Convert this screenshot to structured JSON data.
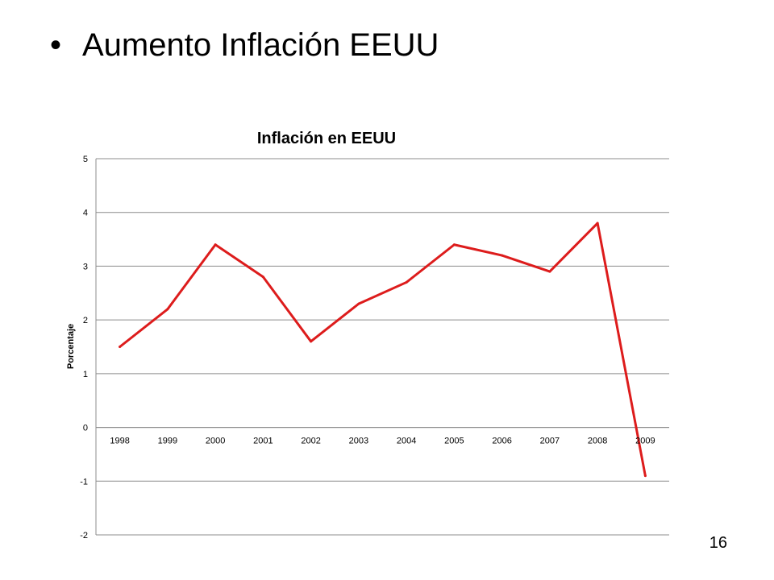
{
  "slide": {
    "bullet": "•",
    "title": "Aumento Inflación EEUU",
    "page_number": "16"
  },
  "chart_data": {
    "type": "line",
    "title": "Inflación en EEUU",
    "xlabel": "",
    "ylabel": "Porcentaje",
    "categories": [
      "1998",
      "1999",
      "2000",
      "2001",
      "2002",
      "2003",
      "2004",
      "2005",
      "2006",
      "2007",
      "2008",
      "2009"
    ],
    "series": [
      {
        "values": [
          1.5,
          2.2,
          3.4,
          2.8,
          1.6,
          2.3,
          2.7,
          3.4,
          3.2,
          2.9,
          3.8,
          -0.9
        ],
        "color": "#dd1c1c"
      }
    ],
    "ylim": [
      -2,
      5
    ],
    "yticks": [
      -2,
      -1,
      0,
      1,
      2,
      3,
      4,
      5
    ],
    "grid": true,
    "legend": "none"
  }
}
